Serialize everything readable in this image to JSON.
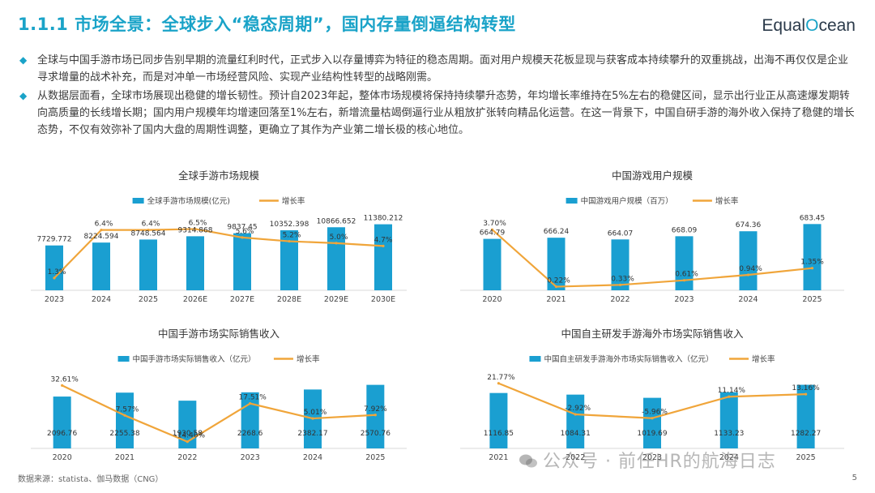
{
  "header": {
    "title": "1.1.1 市场全景：全球步入“稳态周期”，国内存量倒逼结构转型",
    "logo_prefix": "Equal",
    "logo_o": "O",
    "logo_suffix": "cean"
  },
  "bullets": [
    "全球与中国手游市场已同步告别早期的流量红利时代，正式步入以存量博弈为特征的稳态周期。面对用户规模天花板显现与获客成本持续攀升的双重挑战，出海不再仅仅是企业寻求增量的战术补充，而是对冲单一市场经营风险、实现产业结构性转型的战略刚需。",
    "从数据层面看，全球市场展现出稳健的增长韧性。预计自2023年起，整体市场规模将保持持续攀升态势，年均增长率维持在5%左右的稳健区间，显示出行业正从高速爆发期转向高质量的长线增长期；国内用户规模年均增速回落至1%左右，新增流量枯竭倒逼行业从粗放扩张转向精品化运营。在这一背景下，中国自研手游的海外收入保持了稳健的增长态势，不仅有效弥补了国内大盘的周期性调整，更确立了其作为产业第二增长极的核心地位。"
  ],
  "colors": {
    "bar": "#1a9fd1",
    "line": "#f0a53a",
    "accent": "#1aa3c8"
  },
  "chart_data": [
    {
      "type": "bar",
      "title": "全球手游市场规模",
      "categories": [
        "2023",
        "2024",
        "2025",
        "2026E",
        "2027E",
        "2028E",
        "2029E",
        "2030E"
      ],
      "series": [
        {
          "name": "全球手游市场规模(亿元)",
          "kind": "bar",
          "values": [
            7729.772,
            8224.594,
            8748.564,
            9314.868,
            9837.45,
            10352.398,
            10866.652,
            11380.212
          ]
        },
        {
          "name": "增长率",
          "kind": "line",
          "values": [
            1.3,
            6.4,
            6.4,
            6.5,
            5.6,
            5.2,
            5.0,
            4.7
          ]
        }
      ],
      "bar_labels": [
        "7729.772",
        "8224.594",
        "8748.564",
        "9314.868",
        "9837.45",
        "10352.398",
        "10866.652",
        "11380.212"
      ],
      "line_labels": [
        "1.3%",
        "6.4%",
        "6.4%",
        "6.5%",
        "5.6%",
        "5.2%",
        "5.0%",
        "4.7%"
      ],
      "bar_ylim": [
        0,
        13000
      ],
      "line_ylim": [
        0,
        8
      ],
      "legend": "top"
    },
    {
      "type": "bar",
      "title": "中国游戏用户规模",
      "categories": [
        "2020",
        "2021",
        "2022",
        "2023",
        "2024",
        "2025"
      ],
      "series": [
        {
          "name": "中国游戏用户规模（百万）",
          "kind": "bar",
          "values": [
            664.79,
            666.24,
            664.07,
            668.09,
            674.36,
            683.45
          ]
        },
        {
          "name": "增长率",
          "kind": "line",
          "values": [
            3.7,
            0.22,
            0.33,
            0.61,
            0.94,
            1.35
          ]
        }
      ],
      "bar_labels": [
        "664.79",
        "666.24",
        "664.07",
        "668.09",
        "674.36",
        "683.45"
      ],
      "line_labels": [
        "3.70%",
        "0.22%",
        "0.33%",
        "0.61%",
        "0.94%",
        "1.35%"
      ],
      "bar_ylim": [
        600,
        695
      ],
      "line_ylim": [
        0,
        4.6
      ],
      "legend": "top"
    },
    {
      "type": "bar",
      "title": "中国手游市场实际销售收入",
      "categories": [
        "2020",
        "2021",
        "2022",
        "2023",
        "2024",
        "2025"
      ],
      "series": [
        {
          "name": "中国手游市场实际销售收入（亿元）",
          "kind": "bar",
          "values": [
            2096.76,
            2255.38,
            1930.58,
            2268.6,
            2382.17,
            2570.76
          ]
        },
        {
          "name": "增长率",
          "kind": "line",
          "values": [
            32.61,
            7.57,
            -14.4,
            17.51,
            5.01,
            7.92
          ]
        }
      ],
      "bar_labels": [
        "2096.76",
        "2255.38",
        "1930.58",
        "2268.6",
        "2382.17",
        "2570.76"
      ],
      "line_labels": [
        "32.61%",
        "7.57%",
        "-14.40%",
        "17.51%",
        "5.01%",
        "7.92%"
      ],
      "bar_ylim": [
        0,
        3050
      ],
      "line_ylim": [
        -20,
        43
      ],
      "legend": "top"
    },
    {
      "type": "bar",
      "title": "中国自主研发手游海外市场实际销售收入",
      "categories": [
        "2021",
        "2022",
        "2023",
        "2024",
        "2025"
      ],
      "series": [
        {
          "name": "中国自主研发手游海外市场实际销售收入（亿元）",
          "kind": "bar",
          "values": [
            1116.85,
            1084.31,
            1019.69,
            1133.23,
            1282.27
          ]
        },
        {
          "name": "增长率",
          "kind": "line",
          "values": [
            21.77,
            -2.92,
            -5.96,
            11.14,
            13.16
          ]
        }
      ],
      "bar_labels": [
        "1116.85",
        "1084.31",
        "1019.69",
        "1133.23",
        "1282.27"
      ],
      "line_labels": [
        "21.77%",
        "-2.92%",
        "-5.96%",
        "11.14%",
        "13.16%"
      ],
      "bar_ylim": [
        0,
        1520
      ],
      "line_ylim": [
        -30,
        30
      ],
      "legend": "top"
    }
  ],
  "footer": {
    "source": "数据来源：statista、伽马数据（CNG）",
    "page": "5",
    "watermark": "公众号 · 前任HR的航海日志"
  }
}
